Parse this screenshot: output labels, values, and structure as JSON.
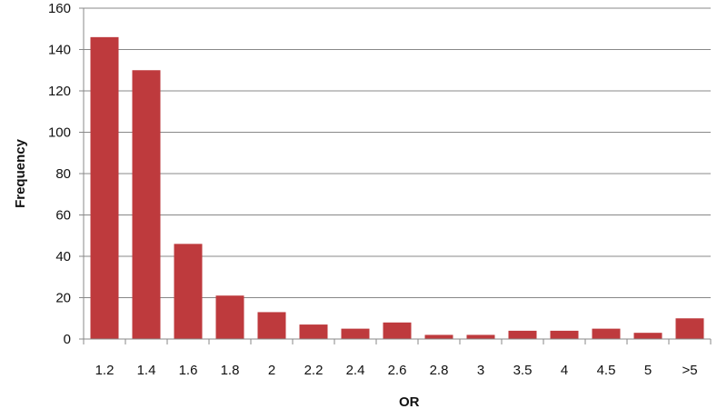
{
  "chart_data": {
    "type": "bar",
    "title": "",
    "xlabel": "OR",
    "ylabel": "Frequency",
    "categories": [
      "1.2",
      "1.4",
      "1.6",
      "1.8",
      "2",
      "2.2",
      "2.4",
      "2.6",
      "2.8",
      "3",
      "3.5",
      "4",
      "4.5",
      "5",
      ">5"
    ],
    "series": [
      {
        "values": [
          146,
          130,
          46,
          21,
          13,
          7,
          5,
          8,
          2,
          2,
          4,
          4,
          5,
          3,
          10
        ]
      }
    ],
    "ylim": [
      0,
      160
    ],
    "yticks": [
      0,
      20,
      40,
      60,
      80,
      100,
      120,
      140,
      160
    ],
    "grid": true,
    "legend": "none",
    "colors": {
      "bar": "#be3a3d",
      "grid": "#888888",
      "axis": "#888888"
    }
  }
}
